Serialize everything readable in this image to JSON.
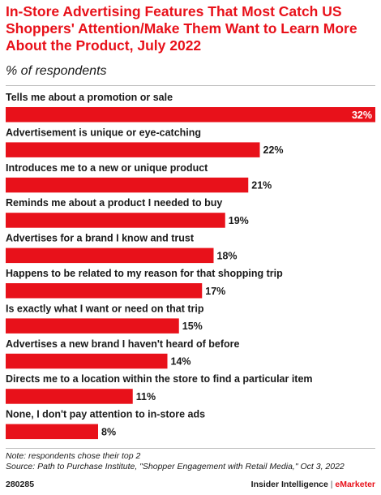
{
  "header": {
    "title": "In-Store Advertising Features That Most Catch US Shoppers' Attention/Make Them Want to Learn More About the Product, July 2022",
    "subtitle": "% of respondents"
  },
  "chart_data": {
    "type": "bar",
    "orientation": "horizontal",
    "categories": [
      "Tells me about a promotion or sale",
      "Advertisement is unique or eye-catching",
      "Introduces me to a new or unique product",
      "Reminds me about a product I needed to buy",
      "Advertises for a brand I know and trust",
      "Happens to be related to my reason for that shopping trip",
      "Is exactly what I want or need on that trip",
      "Advertises a new brand I haven't heard of before",
      "Directs me to a location within the store to find a particular item",
      "None, I don't pay attention to in-store ads"
    ],
    "values": [
      32,
      22,
      21,
      19,
      18,
      17,
      15,
      14,
      11,
      8
    ],
    "value_labels": [
      "32%",
      "22%",
      "21%",
      "19%",
      "18%",
      "17%",
      "15%",
      "14%",
      "11%",
      "8%"
    ],
    "xlim": [
      0,
      32
    ],
    "bar_color": "#e8111a",
    "grid": false,
    "legend": "none"
  },
  "notes": {
    "note": "Note: respondents chose their top 2",
    "source": "Source: Path to Purchase Institute, \"Shopper Engagement with Retail Media,\" Oct 3, 2022"
  },
  "footer": {
    "chart_id": "280285",
    "brand_left": "Insider Intelligence",
    "separator": "|",
    "brand_right": "eMarketer"
  },
  "colors": {
    "accent": "#e8111a",
    "text": "#1a1a1a",
    "rule": "#bdbdbd"
  }
}
